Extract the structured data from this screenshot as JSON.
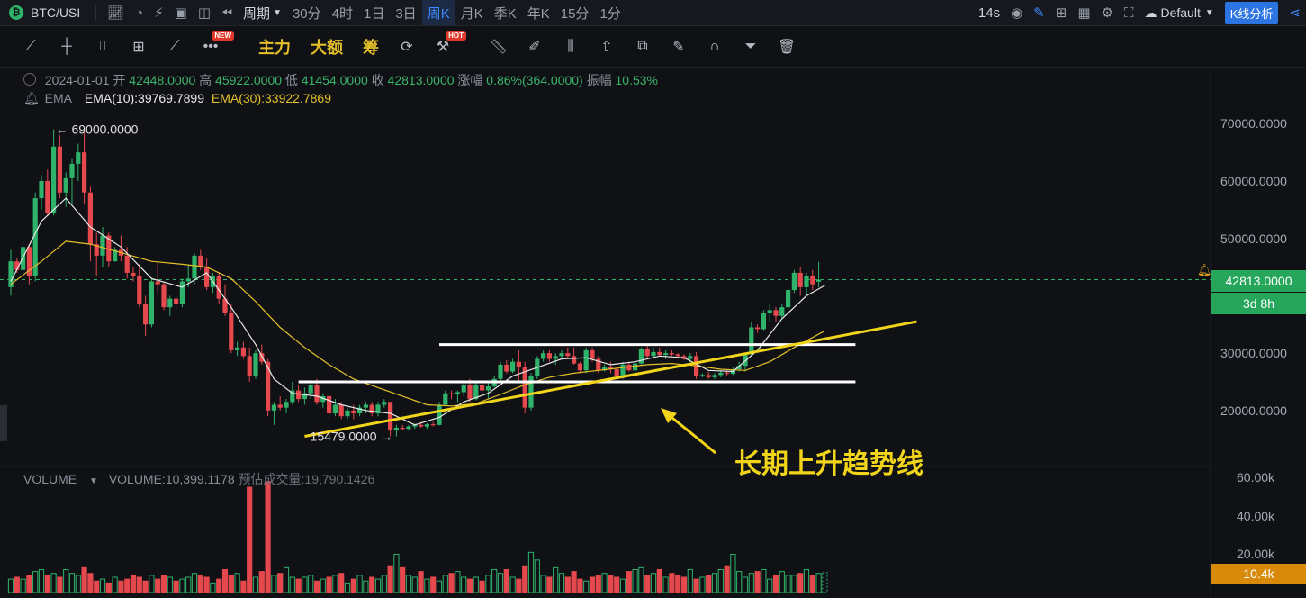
{
  "topbar": {
    "symbol": "BTC/USI",
    "period_label": "周期",
    "intervals": [
      "30分",
      "4时",
      "1日",
      "3日",
      "周K",
      "月K",
      "季K",
      "年K",
      "15分",
      "1分"
    ],
    "active_interval": "周K",
    "countdown": "14s",
    "layout_label": "Default",
    "analysis_button": "K线分析"
  },
  "toolbar2": {
    "labels": [
      "主力",
      "大额",
      "筹"
    ],
    "badge_new": "NEW",
    "badge_hot": "HOT"
  },
  "legend": {
    "date": "2024-01-01",
    "open_label": "开",
    "open": "42448.0000",
    "high_label": "高",
    "high": "45922.0000",
    "low_label": "低",
    "low": "41454.0000",
    "close_label": "收",
    "close": "42813.0000",
    "change_label": "涨幅",
    "change": "0.86%(364.0000)",
    "amp_label": "振幅",
    "amp": "10.53%",
    "ema_name": "EMA",
    "ema10": "EMA(10):39769.7899",
    "ema30": "EMA(30):33922.7869",
    "volume_name": "VOLUME",
    "volume_value": "VOLUME:10,399.1178",
    "volume_est": "预估成交量:19,790.1426"
  },
  "colors": {
    "up": "#2fb36b",
    "down": "#e5484d",
    "ema10": "#e8e8e8",
    "ema30": "#e5c02a",
    "annotation": "#f2d51b"
  },
  "chart_data": {
    "type": "candlestick",
    "timeframe": "weekly",
    "y_axis": {
      "ticks": [
        70000,
        60000,
        50000,
        30000,
        20000
      ],
      "tick_labels": [
        "70000.0000",
        "60000.0000",
        "50000.0000",
        "30000.0000",
        "20000.0000"
      ],
      "ylim": [
        11500,
        73500
      ]
    },
    "volume_axis": {
      "ticks": [
        60,
        40,
        20
      ],
      "tick_labels": [
        "60.00k",
        "40.00k",
        "20.00k"
      ],
      "ylim": [
        0,
        63
      ]
    },
    "last_price": 42813,
    "last_price_label": "42813.0000",
    "countdown_label": "3d 8h",
    "last_volume_label": "10.4k",
    "max_label": "69000.0000",
    "max_value": 69000,
    "min_label": "15479.0000",
    "min_value": 15479,
    "ohlc": [
      [
        41500,
        48000,
        40000,
        46000
      ],
      [
        46000,
        46500,
        44000,
        44500
      ],
      [
        44500,
        49500,
        44000,
        48500
      ],
      [
        48500,
        49000,
        42000,
        43500
      ],
      [
        43500,
        58000,
        42500,
        57000
      ],
      [
        57000,
        61000,
        55000,
        60000
      ],
      [
        60000,
        62000,
        54000,
        54500
      ],
      [
        54500,
        69000,
        54000,
        66000
      ],
      [
        66000,
        68000,
        57000,
        58000
      ],
      [
        58000,
        61500,
        55500,
        60500
      ],
      [
        60500,
        64000,
        56000,
        63000
      ],
      [
        63000,
        66500,
        60000,
        65000
      ],
      [
        65000,
        69000,
        56000,
        58000
      ],
      [
        58000,
        59000,
        46000,
        49000
      ],
      [
        49000,
        51000,
        43500,
        47000
      ],
      [
        47000,
        52000,
        45000,
        50500
      ],
      [
        50500,
        51000,
        45000,
        46000
      ],
      [
        46000,
        48500,
        46000,
        48000
      ],
      [
        48000,
        50500,
        46000,
        47000
      ],
      [
        47000,
        48500,
        43000,
        44000
      ],
      [
        44000,
        45000,
        42500,
        43500
      ],
      [
        43500,
        45500,
        38000,
        38500
      ],
      [
        38500,
        40000,
        33000,
        35000
      ],
      [
        35000,
        43000,
        34500,
        42500
      ],
      [
        42500,
        46000,
        40500,
        42000
      ],
      [
        42000,
        42500,
        37500,
        38000
      ],
      [
        38000,
        40000,
        36500,
        39500
      ],
      [
        39500,
        40500,
        37500,
        38500
      ],
      [
        38500,
        43000,
        38000,
        42500
      ],
      [
        42500,
        45500,
        41500,
        43000
      ],
      [
        43000,
        47500,
        42000,
        47000
      ],
      [
        47000,
        48000,
        44500,
        45000
      ],
      [
        45000,
        46500,
        41000,
        41500
      ],
      [
        41500,
        44000,
        40500,
        43500
      ],
      [
        43500,
        44000,
        38500,
        39500
      ],
      [
        39500,
        42000,
        36500,
        37000
      ],
      [
        37000,
        38500,
        30000,
        30500
      ],
      [
        30500,
        32000,
        29500,
        31000
      ],
      [
        31000,
        32000,
        29000,
        29500
      ],
      [
        29500,
        31000,
        25000,
        26000
      ],
      [
        26000,
        30500,
        25500,
        30000
      ],
      [
        30000,
        31500,
        28000,
        28500
      ],
      [
        28500,
        29000,
        19000,
        20000
      ],
      [
        20000,
        21500,
        17500,
        21000
      ],
      [
        21000,
        22500,
        20000,
        20500
      ],
      [
        20500,
        22000,
        19500,
        21500
      ],
      [
        21500,
        25000,
        21000,
        23500
      ],
      [
        23500,
        24500,
        21500,
        22000
      ],
      [
        22000,
        24000,
        21000,
        23000
      ],
      [
        23000,
        25000,
        22000,
        24500
      ],
      [
        24500,
        25500,
        21000,
        21500
      ],
      [
        21500,
        23000,
        20500,
        22500
      ],
      [
        22500,
        23000,
        18500,
        19500
      ],
      [
        19500,
        22000,
        19000,
        21000
      ],
      [
        21000,
        21500,
        18500,
        19000
      ],
      [
        19000,
        20500,
        18500,
        20000
      ],
      [
        20000,
        21000,
        18500,
        19500
      ],
      [
        19500,
        21000,
        19000,
        20500
      ],
      [
        20500,
        21500,
        19500,
        21000
      ],
      [
        21000,
        21500,
        19000,
        19500
      ],
      [
        19500,
        21500,
        19000,
        21000
      ],
      [
        21000,
        22000,
        20500,
        21500
      ],
      [
        21500,
        21500,
        15500,
        16500
      ],
      [
        16500,
        17500,
        15479,
        17000
      ],
      [
        17000,
        17500,
        16500,
        16800
      ],
      [
        16800,
        17500,
        16500,
        17200
      ],
      [
        17200,
        17700,
        16800,
        17500
      ],
      [
        17500,
        18000,
        17000,
        17200
      ],
      [
        17200,
        17800,
        16800,
        17600
      ],
      [
        17600,
        18000,
        17200,
        17500
      ],
      [
        17500,
        21500,
        17400,
        21000
      ],
      [
        21000,
        23500,
        20800,
        23000
      ],
      [
        23000,
        23500,
        22000,
        22800
      ],
      [
        22800,
        23500,
        21500,
        23200
      ],
      [
        23200,
        25000,
        22500,
        24500
      ],
      [
        24500,
        25500,
        21500,
        22000
      ],
      [
        22000,
        25000,
        21800,
        24500
      ],
      [
        24500,
        25000,
        23000,
        23500
      ],
      [
        23500,
        25000,
        22000,
        24200
      ],
      [
        24200,
        26000,
        24000,
        25500
      ],
      [
        25500,
        28500,
        24800,
        28000
      ],
      [
        28000,
        28800,
        26500,
        26800
      ],
      [
        26800,
        29000,
        26500,
        28500
      ],
      [
        28500,
        30500,
        25000,
        27500
      ],
      [
        27500,
        28500,
        19500,
        20500
      ],
      [
        20500,
        26500,
        20000,
        26000
      ],
      [
        26000,
        29500,
        25500,
        29000
      ],
      [
        29000,
        30500,
        28500,
        30000
      ],
      [
        30000,
        30500,
        28500,
        29000
      ],
      [
        29000,
        30000,
        28000,
        29500
      ],
      [
        29500,
        30500,
        29000,
        30000
      ],
      [
        30000,
        31000,
        29000,
        29500
      ],
      [
        29500,
        31000,
        28000,
        28200
      ],
      [
        28200,
        28500,
        26500,
        27000
      ],
      [
        27000,
        31000,
        26500,
        30500
      ],
      [
        30500,
        31000,
        28500,
        29000
      ],
      [
        29000,
        29500,
        26500,
        27000
      ],
      [
        27000,
        28000,
        26800,
        27500
      ],
      [
        27500,
        28500,
        26500,
        27200
      ],
      [
        27200,
        27500,
        25500,
        26000
      ],
      [
        26000,
        28500,
        25500,
        28000
      ],
      [
        28000,
        28500,
        26800,
        27000
      ],
      [
        27000,
        28500,
        26000,
        28200
      ],
      [
        28200,
        31000,
        28000,
        30800
      ],
      [
        30800,
        31500,
        29000,
        29500
      ],
      [
        29500,
        31000,
        29000,
        30200
      ],
      [
        30200,
        31000,
        29500,
        29700
      ],
      [
        29700,
        30500,
        29000,
        30000
      ],
      [
        30000,
        30500,
        29500,
        29800
      ],
      [
        29800,
        30000,
        29200,
        29500
      ],
      [
        29500,
        29800,
        28800,
        29000
      ],
      [
        29000,
        30000,
        28500,
        29500
      ],
      [
        29500,
        30200,
        25500,
        26000
      ],
      [
        26000,
        26500,
        25800,
        26200
      ],
      [
        26200,
        26800,
        25500,
        25800
      ],
      [
        25800,
        26500,
        25500,
        26200
      ],
      [
        26200,
        27000,
        25800,
        26600
      ],
      [
        26600,
        27000,
        26000,
        26400
      ],
      [
        26400,
        27500,
        26200,
        27200
      ],
      [
        27200,
        28500,
        26800,
        27800
      ],
      [
        27800,
        30000,
        26800,
        29800
      ],
      [
        29800,
        35500,
        29500,
        34500
      ],
      [
        34500,
        35000,
        33500,
        34200
      ],
      [
        34200,
        37500,
        34000,
        37000
      ],
      [
        37000,
        38500,
        35500,
        37500
      ],
      [
        37500,
        38000,
        35500,
        36500
      ],
      [
        36500,
        38500,
        36000,
        38000
      ],
      [
        38000,
        41500,
        37800,
        41000
      ],
      [
        41000,
        44500,
        40500,
        44000
      ],
      [
        44000,
        45000,
        40000,
        41500
      ],
      [
        41500,
        44000,
        40000,
        43500
      ],
      [
        43500,
        44500,
        41000,
        42000
      ],
      [
        42448,
        45922,
        41454,
        42813
      ]
    ],
    "ema10": [
      [
        0,
        42500
      ],
      [
        5,
        53000
      ],
      [
        9,
        57000
      ],
      [
        13,
        52000
      ],
      [
        18,
        48500
      ],
      [
        23,
        43000
      ],
      [
        28,
        41500
      ],
      [
        32,
        44000
      ],
      [
        36,
        38000
      ],
      [
        40,
        31500
      ],
      [
        43,
        25500
      ],
      [
        46,
        23000
      ],
      [
        50,
        22500
      ],
      [
        54,
        21000
      ],
      [
        58,
        20000
      ],
      [
        62,
        19500
      ],
      [
        66,
        17500
      ],
      [
        70,
        18800
      ],
      [
        74,
        21500
      ],
      [
        78,
        23000
      ],
      [
        82,
        26000
      ],
      [
        86,
        27500
      ],
      [
        90,
        29000
      ],
      [
        94,
        29200
      ],
      [
        98,
        28000
      ],
      [
        102,
        28500
      ],
      [
        106,
        29500
      ],
      [
        110,
        29200
      ],
      [
        114,
        27000
      ],
      [
        118,
        26800
      ],
      [
        122,
        30500
      ],
      [
        126,
        36000
      ],
      [
        130,
        40000
      ],
      [
        133,
        41800
      ]
    ],
    "ema30": [
      [
        0,
        42000
      ],
      [
        5,
        46000
      ],
      [
        9,
        49500
      ],
      [
        13,
        49000
      ],
      [
        18,
        47500
      ],
      [
        23,
        46000
      ],
      [
        28,
        45500
      ],
      [
        32,
        45000
      ],
      [
        36,
        43000
      ],
      [
        40,
        39000
      ],
      [
        44,
        34500
      ],
      [
        48,
        31000
      ],
      [
        52,
        28000
      ],
      [
        56,
        25500
      ],
      [
        60,
        24000
      ],
      [
        64,
        22500
      ],
      [
        68,
        21000
      ],
      [
        72,
        20800
      ],
      [
        76,
        21200
      ],
      [
        80,
        22800
      ],
      [
        84,
        24500
      ],
      [
        88,
        25800
      ],
      [
        92,
        26500
      ],
      [
        96,
        27000
      ],
      [
        100,
        27500
      ],
      [
        104,
        28000
      ],
      [
        108,
        28200
      ],
      [
        112,
        27800
      ],
      [
        116,
        27200
      ],
      [
        120,
        27000
      ],
      [
        124,
        28500
      ],
      [
        128,
        31000
      ],
      [
        133,
        33900
      ]
    ],
    "volume": [
      7,
      8,
      7,
      9,
      11,
      12,
      9,
      10,
      8,
      12,
      10,
      9,
      13,
      10,
      6,
      7,
      5,
      8,
      6,
      7,
      9,
      8,
      6,
      9,
      7,
      9,
      8,
      6,
      7,
      8,
      10,
      9,
      8,
      5,
      7,
      12,
      9,
      10,
      6,
      55,
      8,
      11,
      58,
      9,
      10,
      13,
      8,
      7,
      8,
      9,
      6,
      7,
      8,
      9,
      10,
      5,
      7,
      9,
      6,
      8,
      7,
      9,
      14,
      20,
      13,
      9,
      8,
      11,
      7,
      8,
      6,
      9,
      10,
      11,
      8,
      7,
      8,
      6,
      9,
      12,
      10,
      12,
      8,
      7,
      14,
      21,
      17,
      9,
      8,
      13,
      10,
      8,
      11,
      7,
      6,
      8,
      9,
      10,
      9,
      8,
      7,
      11,
      12,
      13,
      9,
      10,
      12,
      8,
      10,
      9,
      8,
      12,
      7,
      8,
      9,
      10,
      12,
      14,
      20,
      11,
      8,
      10,
      11,
      12,
      7,
      9,
      11,
      9,
      9,
      10,
      12,
      9,
      10,
      10.4
    ],
    "annotation_lines": [
      {
        "type": "horizontal",
        "x_from": 70,
        "x_to": 138,
        "y": 31500
      },
      {
        "type": "horizontal",
        "x_from": 47,
        "x_to": 138,
        "y": 25000
      },
      {
        "type": "trendline",
        "from": [
          48,
          15500
        ],
        "to": [
          148,
          35500
        ]
      }
    ],
    "annotation_text": "长期上升趋势线"
  }
}
